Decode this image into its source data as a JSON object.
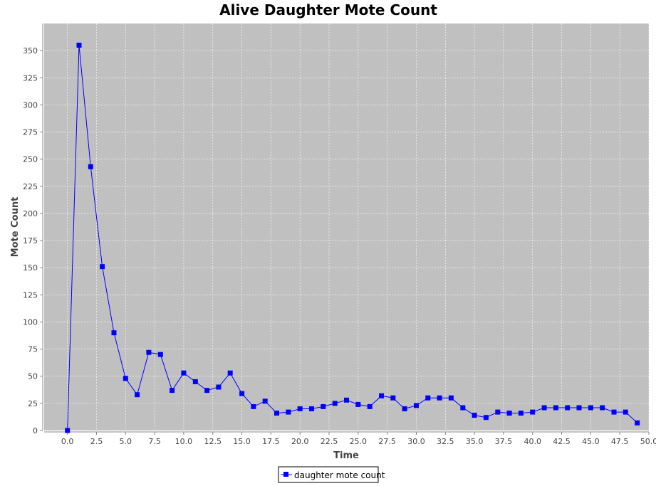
{
  "chart_data": {
    "type": "line",
    "title": "Alive Daughter Mote Count",
    "xlabel": "Time",
    "ylabel": "Mote Count",
    "xlim": [
      -2,
      50
    ],
    "ylim": [
      0,
      375
    ],
    "x_ticks": [
      0,
      2.5,
      5,
      7.5,
      10,
      12.5,
      15,
      17.5,
      20,
      22.5,
      25,
      27.5,
      30,
      32.5,
      35,
      37.5,
      40,
      42.5,
      45,
      47.5,
      50
    ],
    "x_tick_labels": [
      "0.0",
      "2.5",
      "5.0",
      "7.5",
      "10.0",
      "12.5",
      "15.0",
      "17.5",
      "20.0",
      "22.5",
      "25.0",
      "27.5",
      "30.0",
      "32.5",
      "35.0",
      "37.5",
      "40.0",
      "42.5",
      "45.0",
      "47.5",
      "50.0"
    ],
    "y_ticks": [
      0,
      25,
      50,
      75,
      100,
      125,
      150,
      175,
      200,
      225,
      250,
      275,
      300,
      325,
      350
    ],
    "y_tick_labels": [
      "0",
      "25",
      "50",
      "75",
      "100",
      "125",
      "150",
      "175",
      "200",
      "225",
      "250",
      "275",
      "300",
      "325",
      "350"
    ],
    "grid": true,
    "legend_position": "bottom-center",
    "plot_background": "#c0c0c0",
    "grid_color": "#ffffff",
    "series": [
      {
        "name": "daughter mote count",
        "color": "#0000ff",
        "marker": "square",
        "x": [
          0,
          1,
          2,
          3,
          4,
          5,
          6,
          7,
          8,
          9,
          10,
          11,
          12,
          13,
          14,
          15,
          16,
          17,
          18,
          19,
          20,
          21,
          22,
          23,
          24,
          25,
          26,
          27,
          28,
          29,
          30,
          31,
          32,
          33,
          34,
          35,
          36,
          37,
          38,
          39,
          40,
          41,
          42,
          43,
          44,
          45,
          46,
          47,
          48,
          49
        ],
        "values": [
          0,
          355,
          243,
          151,
          90,
          48,
          33,
          72,
          70,
          37,
          53,
          45,
          37,
          40,
          53,
          34,
          22,
          27,
          16,
          17,
          20,
          20,
          22,
          25,
          28,
          24,
          22,
          32,
          30,
          20,
          23,
          30,
          30,
          30,
          21,
          14,
          12,
          17,
          16,
          16,
          17,
          21,
          21,
          21,
          21,
          21,
          21,
          17,
          17,
          7
        ]
      }
    ]
  }
}
